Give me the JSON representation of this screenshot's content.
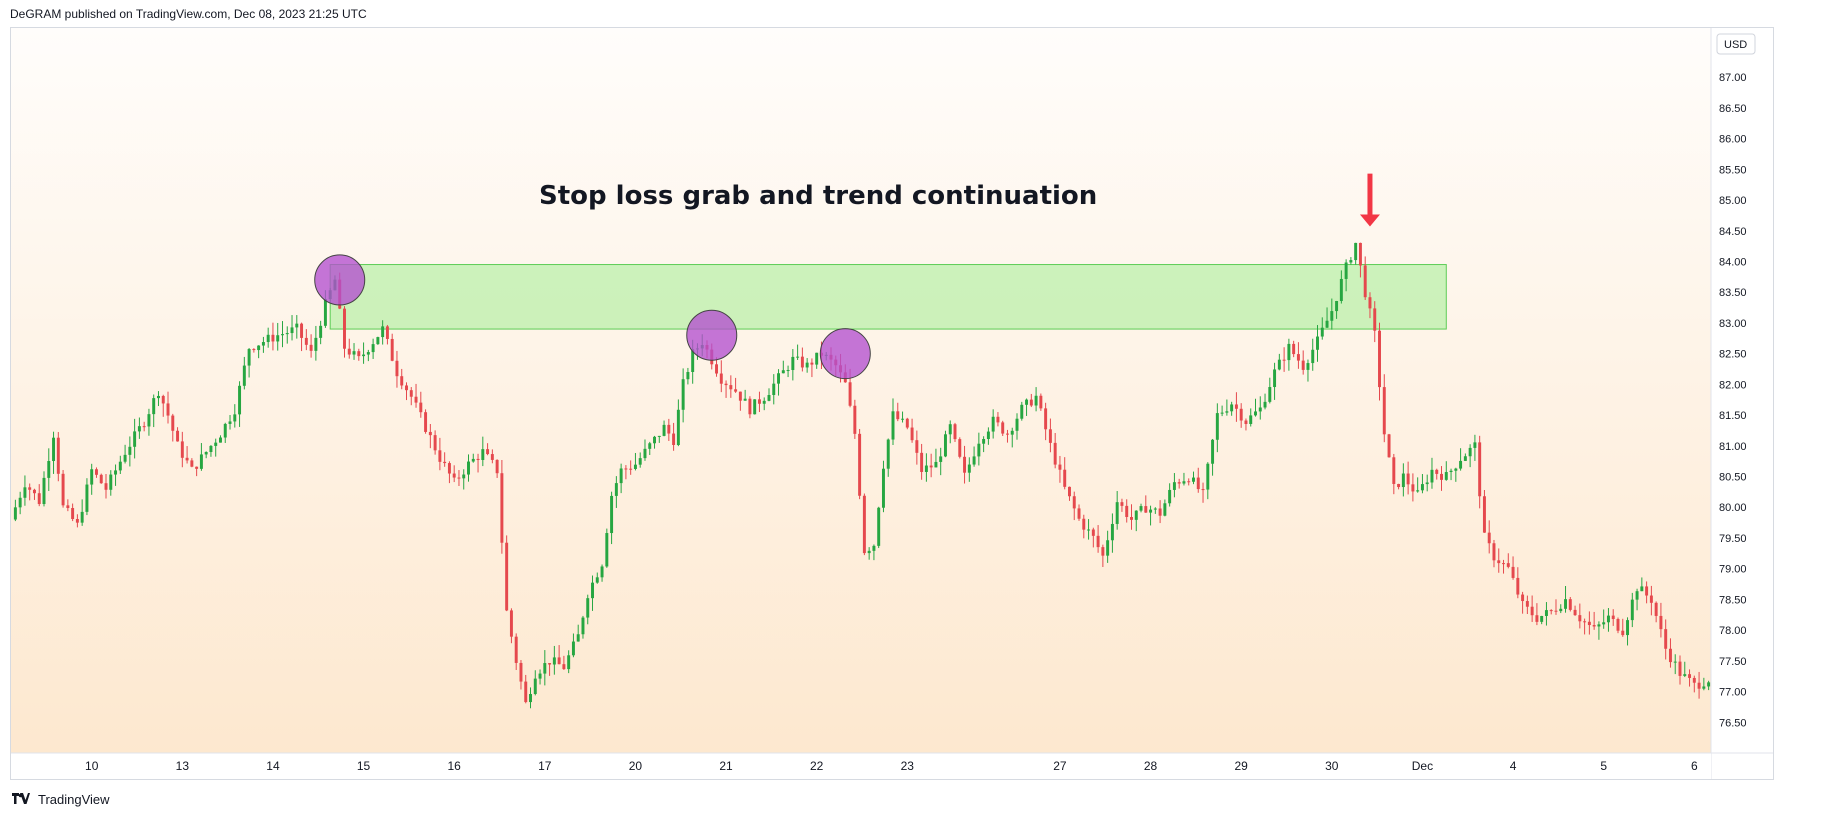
{
  "header": {
    "published": "DeGRAM published on TradingView.com, Dec 08, 2023 21:25 UTC"
  },
  "footer": {
    "brand": "TradingView",
    "logo_icon": "tradingview-logo-icon"
  },
  "chart_data": {
    "type": "candlestick",
    "title": "Stop loss grab and trend continuation",
    "currency_label": "USD",
    "ylim": [
      76.0,
      87.8
    ],
    "y_ticks": [
      "76.50",
      "77.00",
      "77.50",
      "78.00",
      "78.50",
      "79.00",
      "79.50",
      "80.00",
      "80.50",
      "81.00",
      "81.50",
      "82.00",
      "82.50",
      "83.00",
      "83.50",
      "84.00",
      "84.50",
      "85.00",
      "85.50",
      "86.00",
      "86.50",
      "87.00"
    ],
    "x_ticks": [
      {
        "label": "10",
        "bar": 16
      },
      {
        "label": "13",
        "bar": 35
      },
      {
        "label": "14",
        "bar": 54
      },
      {
        "label": "15",
        "bar": 73
      },
      {
        "label": "16",
        "bar": 92
      },
      {
        "label": "17",
        "bar": 111
      },
      {
        "label": "20",
        "bar": 130
      },
      {
        "label": "21",
        "bar": 149
      },
      {
        "label": "22",
        "bar": 168
      },
      {
        "label": "23",
        "bar": 187
      },
      {
        "label": "27",
        "bar": 219
      },
      {
        "label": "28",
        "bar": 238
      },
      {
        "label": "29",
        "bar": 257
      },
      {
        "label": "30",
        "bar": 276
      },
      {
        "label": "Dec",
        "bar": 295
      },
      {
        "label": "4",
        "bar": 314
      },
      {
        "label": "5",
        "bar": 333
      },
      {
        "label": "6",
        "bar": 352
      }
    ],
    "bar_count": 356,
    "price_path": [
      [
        0,
        79.8
      ],
      [
        3,
        80.4
      ],
      [
        6,
        80.1
      ],
      [
        9,
        81.2
      ],
      [
        11,
        80.0
      ],
      [
        14,
        79.7
      ],
      [
        17,
        80.6
      ],
      [
        20,
        80.3
      ],
      [
        24,
        80.9
      ],
      [
        28,
        81.4
      ],
      [
        31,
        81.9
      ],
      [
        33,
        81.5
      ],
      [
        35,
        81.0
      ],
      [
        38,
        80.6
      ],
      [
        41,
        80.9
      ],
      [
        44,
        81.2
      ],
      [
        47,
        81.6
      ],
      [
        50,
        82.6
      ],
      [
        53,
        82.7
      ],
      [
        56,
        82.8
      ],
      [
        60,
        82.9
      ],
      [
        63,
        82.5
      ],
      [
        66,
        83.3
      ],
      [
        68,
        83.7
      ],
      [
        70,
        82.6
      ],
      [
        73,
        82.4
      ],
      [
        75,
        82.6
      ],
      [
        78,
        82.9
      ],
      [
        81,
        82.2
      ],
      [
        84,
        81.8
      ],
      [
        87,
        81.3
      ],
      [
        90,
        80.8
      ],
      [
        93,
        80.4
      ],
      [
        96,
        80.7
      ],
      [
        99,
        80.9
      ],
      [
        102,
        80.6
      ],
      [
        104,
        78.3
      ],
      [
        106,
        77.5
      ],
      [
        108,
        76.8
      ],
      [
        110,
        77.3
      ],
      [
        113,
        77.5
      ],
      [
        116,
        77.4
      ],
      [
        119,
        77.9
      ],
      [
        121,
        78.6
      ],
      [
        124,
        79.1
      ],
      [
        126,
        80.2
      ],
      [
        128,
        80.6
      ],
      [
        131,
        80.7
      ],
      [
        134,
        81.0
      ],
      [
        137,
        81.3
      ],
      [
        139,
        81.1
      ],
      [
        141,
        82.0
      ],
      [
        143,
        82.5
      ],
      [
        145,
        82.7
      ],
      [
        147,
        82.4
      ],
      [
        149,
        82.1
      ],
      [
        152,
        81.9
      ],
      [
        155,
        81.6
      ],
      [
        158,
        81.8
      ],
      [
        161,
        82.1
      ],
      [
        164,
        82.4
      ],
      [
        167,
        82.3
      ],
      [
        170,
        82.5
      ],
      [
        173,
        82.3
      ],
      [
        175,
        82.0
      ],
      [
        177,
        81.2
      ],
      [
        179,
        79.3
      ],
      [
        181,
        79.4
      ],
      [
        183,
        80.7
      ],
      [
        185,
        81.5
      ],
      [
        188,
        81.3
      ],
      [
        191,
        80.6
      ],
      [
        194,
        80.7
      ],
      [
        197,
        81.3
      ],
      [
        200,
        80.5
      ],
      [
        203,
        81.1
      ],
      [
        206,
        81.4
      ],
      [
        209,
        81.2
      ],
      [
        212,
        81.6
      ],
      [
        215,
        81.8
      ],
      [
        218,
        81.0
      ],
      [
        221,
        80.3
      ],
      [
        224,
        79.8
      ],
      [
        227,
        79.5
      ],
      [
        229,
        79.2
      ],
      [
        232,
        80.1
      ],
      [
        235,
        79.8
      ],
      [
        238,
        80.0
      ],
      [
        241,
        79.9
      ],
      [
        244,
        80.4
      ],
      [
        247,
        80.5
      ],
      [
        250,
        80.2
      ],
      [
        253,
        81.5
      ],
      [
        256,
        81.7
      ],
      [
        259,
        81.4
      ],
      [
        262,
        81.6
      ],
      [
        265,
        82.2
      ],
      [
        268,
        82.6
      ],
      [
        271,
        82.3
      ],
      [
        274,
        82.7
      ],
      [
        277,
        83.2
      ],
      [
        280,
        83.9
      ],
      [
        282,
        84.3
      ],
      [
        284,
        83.5
      ],
      [
        286,
        82.8
      ],
      [
        288,
        81.2
      ],
      [
        290,
        80.3
      ],
      [
        292,
        80.5
      ],
      [
        295,
        80.2
      ],
      [
        298,
        80.6
      ],
      [
        301,
        80.5
      ],
      [
        304,
        80.8
      ],
      [
        307,
        81.0
      ],
      [
        309,
        79.5
      ],
      [
        311,
        79.2
      ],
      [
        314,
        79.0
      ],
      [
        317,
        78.4
      ],
      [
        320,
        78.2
      ],
      [
        323,
        78.3
      ],
      [
        326,
        78.5
      ],
      [
        329,
        78.2
      ],
      [
        332,
        78.0
      ],
      [
        335,
        78.2
      ],
      [
        338,
        78.0
      ],
      [
        341,
        78.7
      ],
      [
        344,
        78.5
      ],
      [
        347,
        77.7
      ],
      [
        350,
        77.3
      ],
      [
        353,
        77.1
      ],
      [
        356,
        77.2
      ]
    ],
    "resistance_zone": {
      "from_bar": 66,
      "to_bar": 300,
      "low": 82.9,
      "high": 83.95,
      "color": "#90ee80"
    },
    "highlight_circles": [
      {
        "bar": 68,
        "price": 83.7
      },
      {
        "bar": 146,
        "price": 82.8
      },
      {
        "bar": 174,
        "price": 82.5
      }
    ],
    "arrow": {
      "bar": 284,
      "price_top": 85.3,
      "price_bottom": 84.7,
      "color": "#f23645"
    },
    "colors": {
      "up": "#26a641",
      "down": "#e5484d",
      "circle_fill": "#b44fcf",
      "circle_stroke": "#444444",
      "bg_top": "#fffdfb",
      "bg_bottom": "#fde8cf",
      "axis_text": "#131722",
      "grid": "#e0e3eb"
    }
  }
}
